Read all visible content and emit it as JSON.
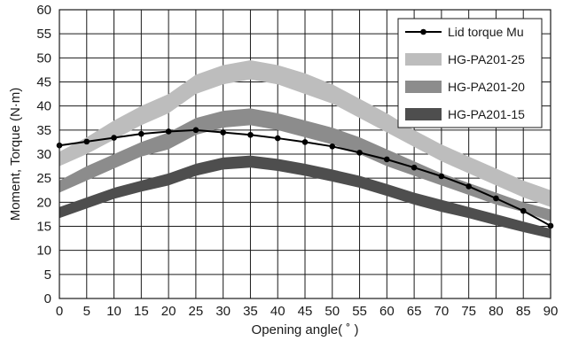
{
  "chart_data": {
    "type": "area",
    "title": "",
    "xlabel": "Opening angle( ˚ )",
    "ylabel": "Moment, Torque (N·m)",
    "xlim": [
      0,
      90
    ],
    "ylim": [
      0,
      60
    ],
    "x_ticks": [
      0,
      5,
      10,
      15,
      20,
      25,
      30,
      35,
      40,
      45,
      50,
      55,
      60,
      65,
      70,
      75,
      80,
      85,
      90
    ],
    "y_ticks": [
      0,
      5,
      10,
      15,
      20,
      25,
      30,
      35,
      40,
      45,
      50,
      55,
      60
    ],
    "grid": true,
    "legend_position": "top-right",
    "x": [
      0,
      5,
      10,
      15,
      20,
      25,
      30,
      35,
      40,
      45,
      50,
      55,
      60,
      65,
      70,
      75,
      80,
      85,
      90
    ],
    "series": [
      {
        "name": "HG-PA201-25",
        "kind": "band",
        "color": "#bdbdbd",
        "upper": [
          30.5,
          33.5,
          37,
          40,
          42.5,
          46.5,
          48.5,
          49.5,
          48.5,
          46.8,
          44.5,
          41.5,
          38.5,
          35,
          32,
          29.5,
          27,
          24.5,
          22.5
        ],
        "lower": [
          27.5,
          30,
          33,
          36,
          38.5,
          42.5,
          44.5,
          45.5,
          44.5,
          42.5,
          40.5,
          37.5,
          34.5,
          31.5,
          28.5,
          26,
          23.5,
          21,
          19
        ]
      },
      {
        "name": "HG-PA201-20",
        "kind": "band",
        "color": "#8c8c8c",
        "upper": [
          24.5,
          27.5,
          30,
          32.5,
          34.5,
          37.5,
          39,
          39.5,
          38.5,
          37,
          35.5,
          33.5,
          31,
          28.5,
          26,
          24,
          22,
          20,
          18.5
        ],
        "lower": [
          22,
          24.5,
          27,
          29.5,
          31,
          34,
          35.5,
          36,
          35,
          33.5,
          32,
          30,
          27.5,
          25.5,
          23.5,
          21.5,
          19.5,
          18,
          16
        ]
      },
      {
        "name": "HG-PA201-15",
        "kind": "band",
        "color": "#4e4e4e",
        "upper": [
          19,
          21,
          23,
          24.5,
          26,
          28,
          29.3,
          29.7,
          29,
          28,
          26.8,
          25.5,
          23.8,
          22,
          20.5,
          19,
          17.5,
          16,
          14.5
        ],
        "lower": [
          16.7,
          18.7,
          20.7,
          22.2,
          23.5,
          25.5,
          26.8,
          27.2,
          26.5,
          25.5,
          24.3,
          23,
          21.3,
          19.5,
          18,
          16.7,
          15.2,
          13.8,
          12.5
        ]
      },
      {
        "name": "Lid torque Mu",
        "kind": "line",
        "color": "#000000",
        "values": [
          31.8,
          32.6,
          33.4,
          34.2,
          34.7,
          35,
          34.5,
          34,
          33.3,
          32.5,
          31.6,
          30.3,
          28.9,
          27.2,
          25.4,
          23.3,
          20.8,
          18.2,
          15.1
        ]
      }
    ]
  }
}
